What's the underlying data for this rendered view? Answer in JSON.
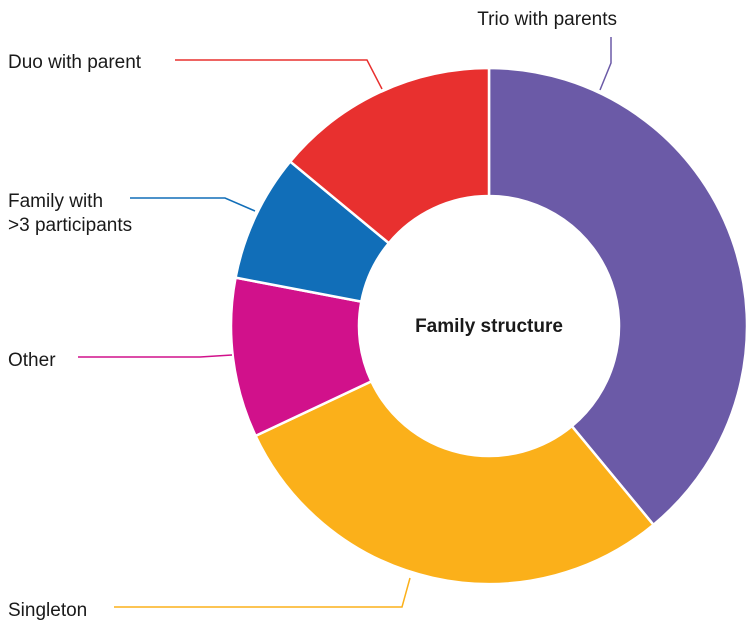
{
  "chart_data": {
    "type": "pie",
    "variant": "donut",
    "title": "Family structure",
    "slices": [
      {
        "label": "Trio with parents",
        "value": 39,
        "color": "#6b5aa7"
      },
      {
        "label": "Singleton",
        "value": 29,
        "color": "#fbb01a"
      },
      {
        "label": "Other",
        "value": 10,
        "color": "#d1118b"
      },
      {
        "label": "Family with >3 participants",
        "label_lines": [
          "Family with",
          ">3 participants"
        ],
        "value": 8,
        "color": "#116eb8"
      },
      {
        "label": "Duo with parent",
        "value": 14,
        "color": "#e8302f"
      }
    ],
    "legend": "none",
    "labels": "outside-with-leader-lines"
  }
}
